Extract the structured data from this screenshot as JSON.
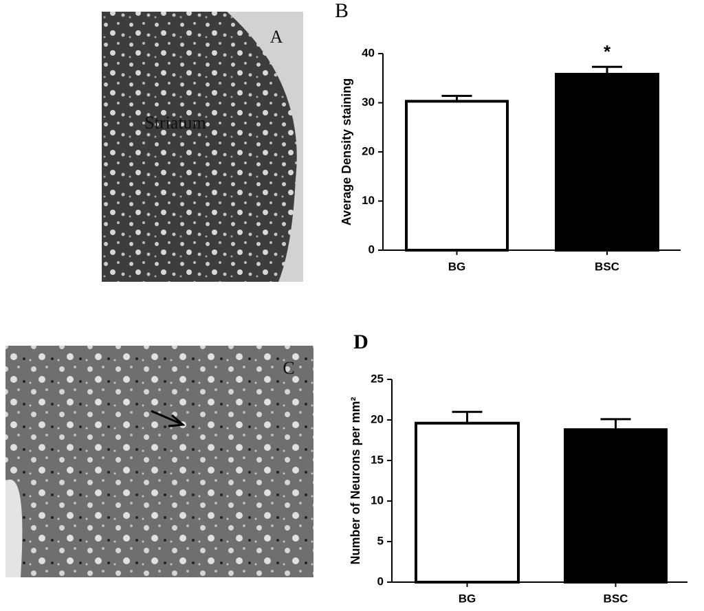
{
  "images": [
    {
      "label": "A",
      "annotation": "Striatum"
    },
    {
      "label": "C"
    }
  ],
  "chart_data": [
    {
      "type": "bar",
      "panel_label": "B",
      "y_label": "Average Density staining",
      "categories": [
        "BG",
        "BSC"
      ],
      "values": [
        30.3,
        35.8
      ],
      "errors": [
        1.1,
        1.5
      ],
      "colors": [
        "#ffffff",
        "#000000"
      ],
      "annotation": "*",
      "ylim": [
        0,
        40
      ],
      "yticks": [
        0,
        10,
        20,
        30,
        40
      ]
    },
    {
      "type": "bar",
      "panel_label": "D",
      "y_label": "Number of Neurons per mm²",
      "categories": [
        "BG",
        "BSC"
      ],
      "values": [
        19.6,
        18.8
      ],
      "errors": [
        1.4,
        1.3
      ],
      "colors": [
        "#ffffff",
        "#000000"
      ],
      "ylim": [
        0,
        25
      ],
      "yticks": [
        0,
        5,
        10,
        15,
        20,
        25
      ]
    }
  ]
}
